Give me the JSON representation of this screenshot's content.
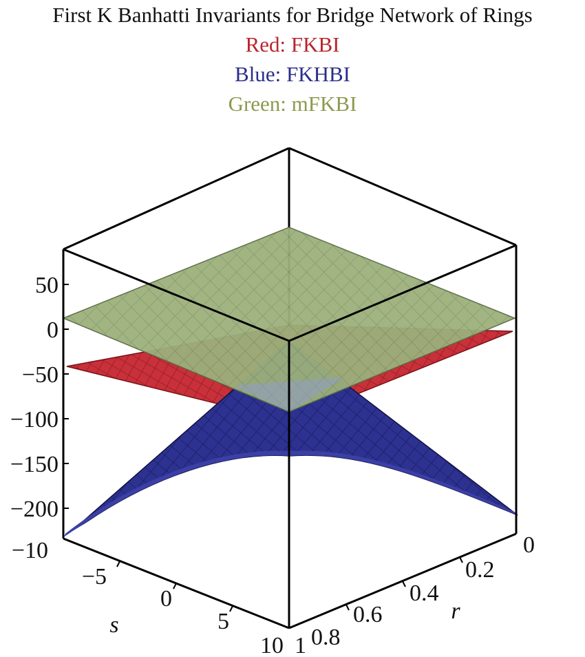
{
  "chart_data": {
    "type": "surface3d",
    "title": "First K Banhatti Invariants for Bridge Network of Rings",
    "subtitles": [
      {
        "text": "Red: FKBI",
        "color": "#b8262c"
      },
      {
        "text": "Blue: FKHBI",
        "color": "#2b2e8c"
      },
      {
        "text": "Green: mFKBI",
        "color": "#8c9a4e"
      }
    ],
    "z_ticks": [
      "50",
      "0",
      "-50",
      "-100",
      "-150",
      "-200"
    ],
    "s_ticks": [
      "-10",
      "-5",
      "0",
      "5",
      "10"
    ],
    "r_ticks": [
      "0",
      "0.2",
      "0.4",
      "0.6",
      "0.8",
      "1"
    ],
    "s_label": "s",
    "r_label": "r",
    "s_range": [
      -10,
      10
    ],
    "r_range": [
      0,
      1
    ],
    "z_range": [
      -230,
      80
    ],
    "colors": {
      "red": "#c0282e",
      "blue": "#272b8a",
      "green": "#9cb07c",
      "edge": "#000000"
    }
  }
}
